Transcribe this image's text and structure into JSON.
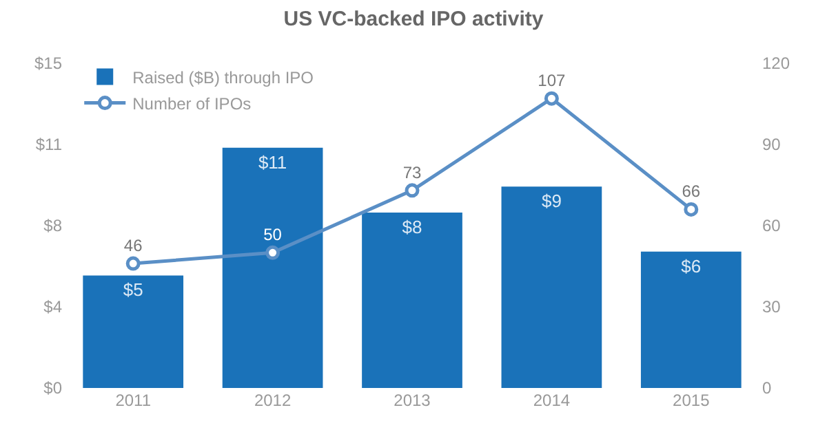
{
  "chart_data": {
    "type": "bar",
    "title": "US VC-backed IPO activity",
    "categories": [
      "2011",
      "2012",
      "2013",
      "2014",
      "2015"
    ],
    "series": [
      {
        "name": "Raised ($B) through IPO",
        "color": "#1a72b9",
        "values": [
          5.2,
          11.1,
          8.1,
          9.3,
          6.3
        ],
        "value_labels": [
          "$5",
          "$11",
          "$8",
          "$9",
          "$6"
        ]
      },
      {
        "name": "Number of IPOs",
        "type": "line",
        "axis": "y2",
        "color": "#5a8fc6",
        "values": [
          46,
          50,
          73,
          107,
          66
        ],
        "value_labels": [
          "46",
          "50",
          "73",
          "107",
          "66"
        ]
      }
    ],
    "ylim": [
      0,
      15
    ],
    "yticks": [
      {
        "value": 0,
        "label": "$0"
      },
      {
        "value": 3.75,
        "label": "$4"
      },
      {
        "value": 7.5,
        "label": "$8"
      },
      {
        "value": 11.25,
        "label": "$11"
      },
      {
        "value": 15,
        "label": "$15"
      }
    ],
    "y2lim": [
      0,
      120
    ],
    "y2ticks": [
      0,
      30,
      60,
      90,
      120
    ],
    "grid": false,
    "legend": "top left",
    "marker": "circle",
    "line_style": "solid"
  }
}
